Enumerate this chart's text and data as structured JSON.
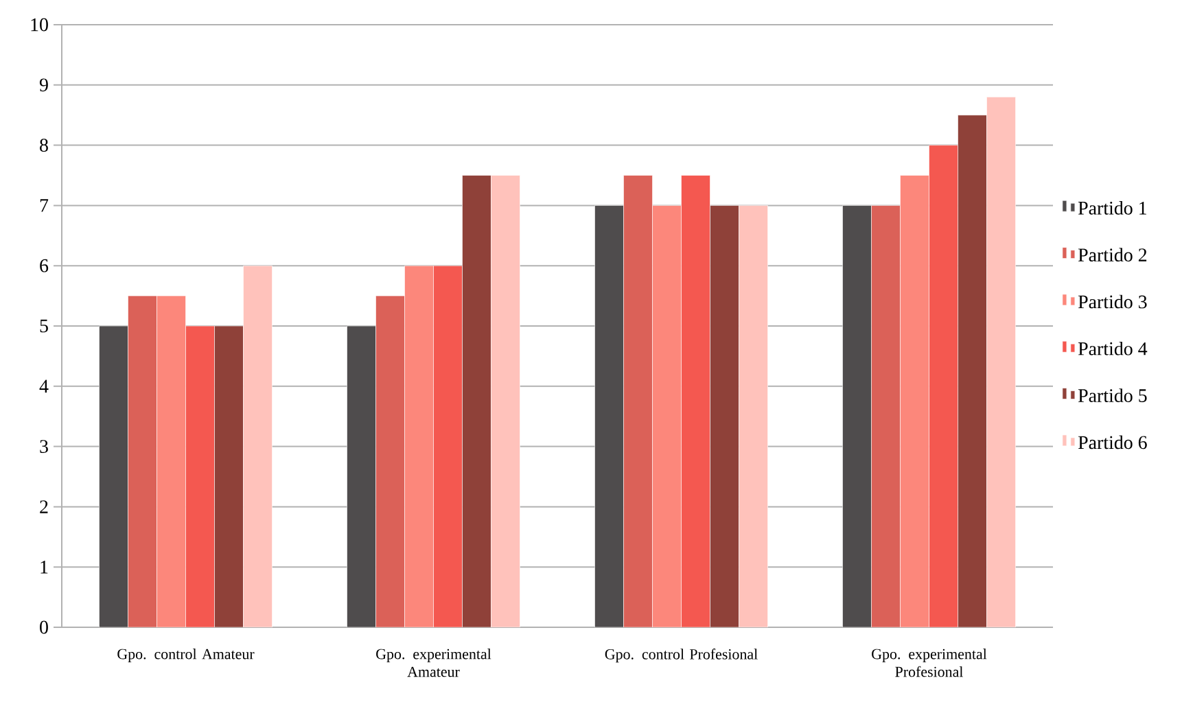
{
  "chart_data": {
    "type": "bar",
    "categories": [
      "Gpo. control Amateur",
      "Gpo. experimental Amateur",
      "Gpo. control Profesional",
      "Gpo. experimental Profesional"
    ],
    "series": [
      {
        "name": "Partido 1",
        "color": "#4f4c4d",
        "values": [
          5,
          5,
          7,
          7
        ]
      },
      {
        "name": "Partido 2",
        "color": "#db6158",
        "values": [
          5.5,
          5.5,
          7.5,
          7
        ]
      },
      {
        "name": "Partido 3",
        "color": "#fc877b",
        "values": [
          5.5,
          6,
          7,
          7.5
        ]
      },
      {
        "name": "Partido 4",
        "color": "#f45850",
        "values": [
          5,
          6,
          7.5,
          8
        ]
      },
      {
        "name": "Partido 5",
        "color": "#8f4139",
        "values": [
          5,
          7.5,
          7,
          8.5
        ]
      },
      {
        "name": "Partido 6",
        "color": "#ffc2bb",
        "values": [
          6,
          7.5,
          7,
          8.8
        ]
      }
    ],
    "ylim": [
      0,
      10
    ],
    "yticks": [
      0,
      1,
      2,
      3,
      4,
      5,
      6,
      7,
      8,
      9,
      10
    ],
    "grid": "y",
    "legend": "right"
  }
}
